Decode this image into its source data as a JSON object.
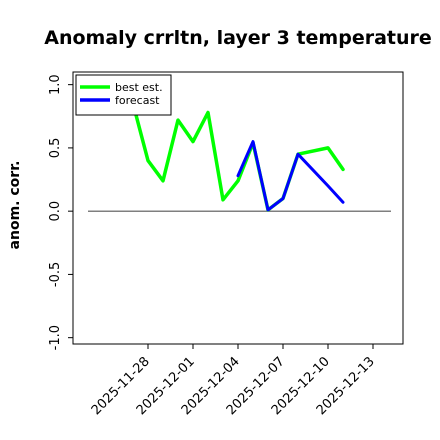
{
  "chart_data": {
    "type": "line",
    "title": "Anomaly crrltn, layer 3 temperature",
    "ylabel": "anom. corr.",
    "xlabel": "",
    "ylim": [
      -1.05,
      1.1
    ],
    "yticks": [
      -1.0,
      -0.5,
      0.0,
      0.5,
      1.0
    ],
    "xlim": [
      "2025-11-23",
      "2025-12-15"
    ],
    "xticks": [
      {
        "label": "2025-11-28",
        "date": "2025-11-28",
        "color": "#000000"
      },
      {
        "label": "2025-12-01",
        "date": "2025-12-01",
        "color": "#000000"
      },
      {
        "label": "2025-12-04",
        "date": "2025-12-04",
        "color": "#008000"
      },
      {
        "label": "2025-12-07",
        "date": "2025-12-07",
        "color": "#000000"
      },
      {
        "label": "2025-12-10",
        "date": "2025-12-10",
        "color": "#000000"
      },
      {
        "label": "2025-12-13",
        "date": "2025-12-13",
        "color": "#000000"
      }
    ],
    "reference_line": 0,
    "legend_position": "top-left",
    "series": [
      {
        "name": "best est.",
        "color": "#00ff00",
        "points": [
          {
            "x": "2025-11-27",
            "y": 0.85
          },
          {
            "x": "2025-11-28",
            "y": 0.4
          },
          {
            "x": "2025-11-29",
            "y": 0.24
          },
          {
            "x": "2025-11-30",
            "y": 0.72
          },
          {
            "x": "2025-12-01",
            "y": 0.55
          },
          {
            "x": "2025-12-02",
            "y": 0.78
          },
          {
            "x": "2025-12-03",
            "y": 0.09
          },
          {
            "x": "2025-12-04",
            "y": 0.24
          },
          {
            "x": "2025-12-05",
            "y": 0.54
          },
          {
            "x": "2025-12-06",
            "y": 0.01
          },
          {
            "x": "2025-12-07",
            "y": 0.1
          },
          {
            "x": "2025-12-08",
            "y": 0.45
          },
          {
            "x": "2025-12-10",
            "y": 0.5
          },
          {
            "x": "2025-12-11",
            "y": 0.33
          }
        ]
      },
      {
        "name": "forecast",
        "color": "#0000ff",
        "points": [
          {
            "x": "2025-12-04",
            "y": 0.28
          },
          {
            "x": "2025-12-05",
            "y": 0.55
          },
          {
            "x": "2025-12-06",
            "y": 0.01
          },
          {
            "x": "2025-12-07",
            "y": 0.1
          },
          {
            "x": "2025-12-08",
            "y": 0.45
          },
          {
            "x": "2025-12-10",
            "y": 0.2
          },
          {
            "x": "2025-12-11",
            "y": 0.07
          }
        ]
      }
    ]
  }
}
